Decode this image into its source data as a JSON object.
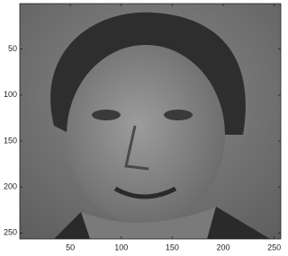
{
  "chart_data": {
    "type": "image",
    "xlim": [
      0.5,
      256.5
    ],
    "ylim": [
      0.5,
      256.5
    ],
    "y_reversed": true,
    "xticks": [
      50,
      100,
      150,
      200,
      250
    ],
    "yticks": [
      50,
      100,
      150,
      200,
      250
    ],
    "colormap": "gray"
  }
}
